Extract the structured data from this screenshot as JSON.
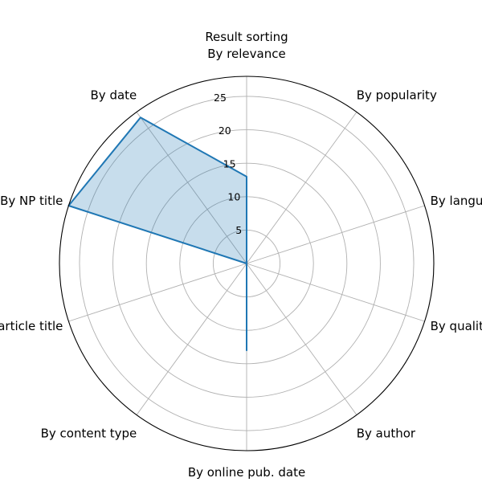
{
  "chart_data": {
    "type": "radar",
    "title": [
      "Result sorting",
      "By relevance"
    ],
    "categories": [
      "By relevance",
      "By popularity",
      "By language",
      "By quality of text",
      "By author",
      "By online pub. date",
      "By content type",
      "By article title",
      "By NP title",
      "By date"
    ],
    "values": [
      13,
      0,
      0,
      0,
      0,
      13,
      0,
      0,
      28,
      27
    ],
    "rticks": [
      5,
      10,
      15,
      20,
      25
    ],
    "rlim": [
      0,
      28
    ],
    "grid": true,
    "colors": {
      "line": "#1f77b4",
      "fill": "#1f77b4",
      "fill_opacity": 0.25
    }
  }
}
